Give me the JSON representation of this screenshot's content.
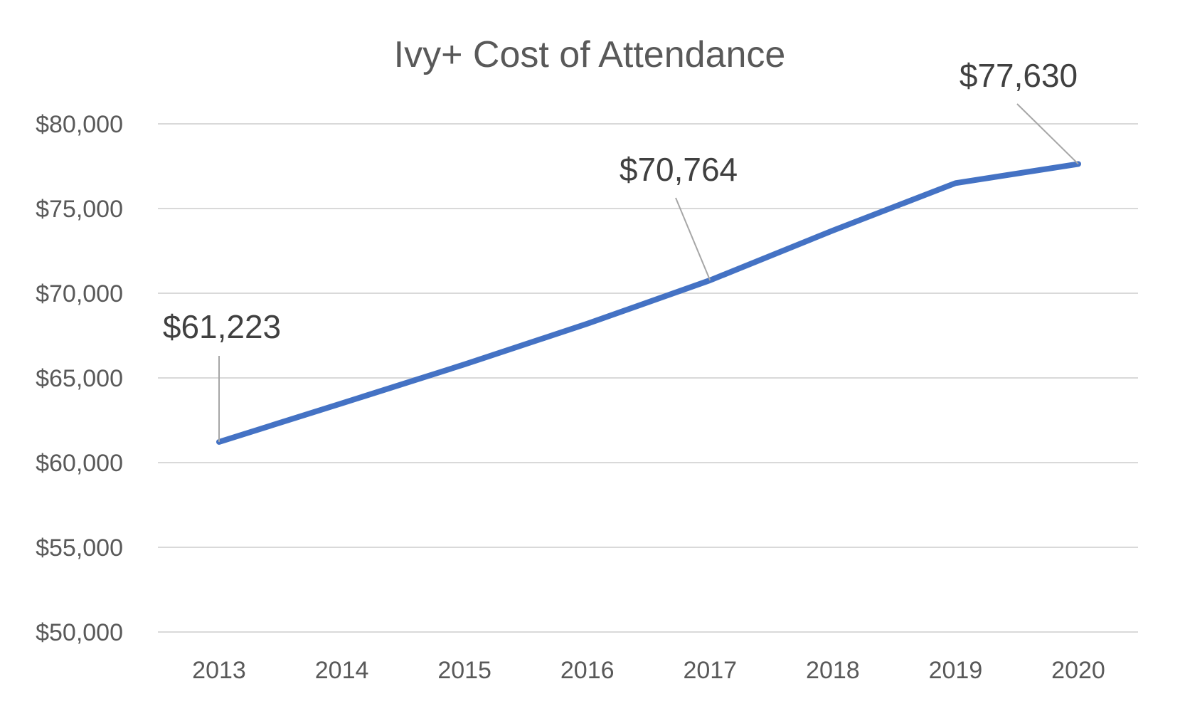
{
  "chart_data": {
    "type": "line",
    "title": "Ivy+ Cost of Attendance",
    "xlabel": "",
    "ylabel": "",
    "categories": [
      "2013",
      "2014",
      "2015",
      "2016",
      "2017",
      "2018",
      "2019",
      "2020"
    ],
    "series": [
      {
        "values": [
          61223,
          63500,
          65800,
          68200,
          70764,
          73700,
          76500,
          77630
        ],
        "color": "#4472C4"
      }
    ],
    "ylim": [
      50000,
      80000
    ],
    "yticks": [
      50000,
      55000,
      60000,
      65000,
      70000,
      75000,
      80000
    ],
    "ytick_labels": [
      "$50,000",
      "$55,000",
      "$60,000",
      "$65,000",
      "$70,000",
      "$75,000",
      "$80,000"
    ],
    "grid": true,
    "legend": "none",
    "data_labels": [
      {
        "category": "2013",
        "value": 61223,
        "text": "$61,223"
      },
      {
        "category": "2017",
        "value": 70764,
        "text": "$70,764"
      },
      {
        "category": "2020",
        "value": 77630,
        "text": "$77,630"
      }
    ],
    "colors": {
      "line": "#4472C4",
      "grid": "#D9D9D9",
      "leader": "#A6A6A6",
      "axis_text": "#595959",
      "label_text": "#404040"
    }
  }
}
